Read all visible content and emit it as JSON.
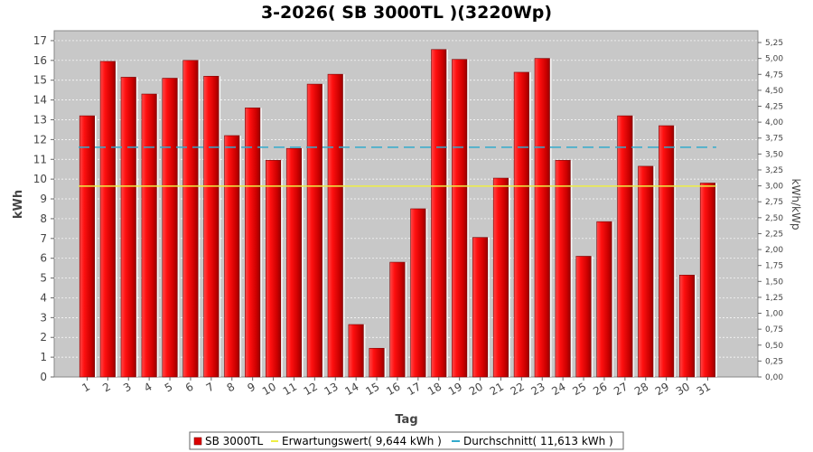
{
  "chart_data": {
    "type": "bar",
    "title": "3-2026( SB 3000TL )(3220Wp)",
    "xlabel": "Tag",
    "ylabel": "kWh",
    "y2label": "kWh/kWp",
    "categories": [
      "1",
      "2",
      "3",
      "4",
      "5",
      "6",
      "7",
      "8",
      "9",
      "10",
      "11",
      "12",
      "13",
      "14",
      "15",
      "16",
      "17",
      "18",
      "19",
      "20",
      "21",
      "22",
      "23",
      "24",
      "25",
      "26",
      "27",
      "28",
      "29",
      "30",
      "31"
    ],
    "series": [
      {
        "name": "SB 3000TL",
        "color": "#dd0000",
        "values": [
          13.2,
          15.95,
          15.15,
          14.3,
          15.1,
          16.0,
          15.2,
          12.2,
          13.6,
          10.95,
          11.55,
          14.8,
          15.3,
          2.65,
          1.45,
          5.8,
          8.5,
          16.55,
          16.05,
          7.05,
          10.05,
          15.4,
          16.1,
          10.95,
          6.1,
          7.85,
          13.2,
          10.65,
          12.7,
          5.15,
          9.8
        ]
      }
    ],
    "reference_lines": [
      {
        "name": "Erwartungswert( 9,644 kWh )",
        "value": 9.644,
        "color": "#eeee44",
        "style": "solid"
      },
      {
        "name": "Durchschnitt( 11,613 kWh )",
        "value": 11.613,
        "color": "#33aacc",
        "style": "dashed"
      }
    ],
    "ylim": [
      0,
      17.5
    ],
    "yticks": [
      "0",
      "1",
      "2",
      "3",
      "4",
      "5",
      "6",
      "7",
      "8",
      "9",
      "10",
      "11",
      "12",
      "13",
      "14",
      "15",
      "16",
      "17"
    ],
    "y2lim": [
      0,
      5.435
    ],
    "y2ticks": [
      "0,00",
      "0,25",
      "0,50",
      "0,75",
      "1,00",
      "1,25",
      "1,50",
      "1,75",
      "2,00",
      "2,25",
      "2,50",
      "2,75",
      "3,00",
      "3,25",
      "3,50",
      "3,75",
      "4,00",
      "4,25",
      "4,50",
      "4,75",
      "5,00",
      "5,25"
    ],
    "grid": true,
    "legend": "bottom",
    "plot_background": "#c8c8c8"
  },
  "legend": {
    "series_label": "SB 3000TL",
    "expected_label": "Erwartungswert( 9,644 kWh )",
    "average_label": "Durchschnitt( 11,613 kWh )"
  }
}
